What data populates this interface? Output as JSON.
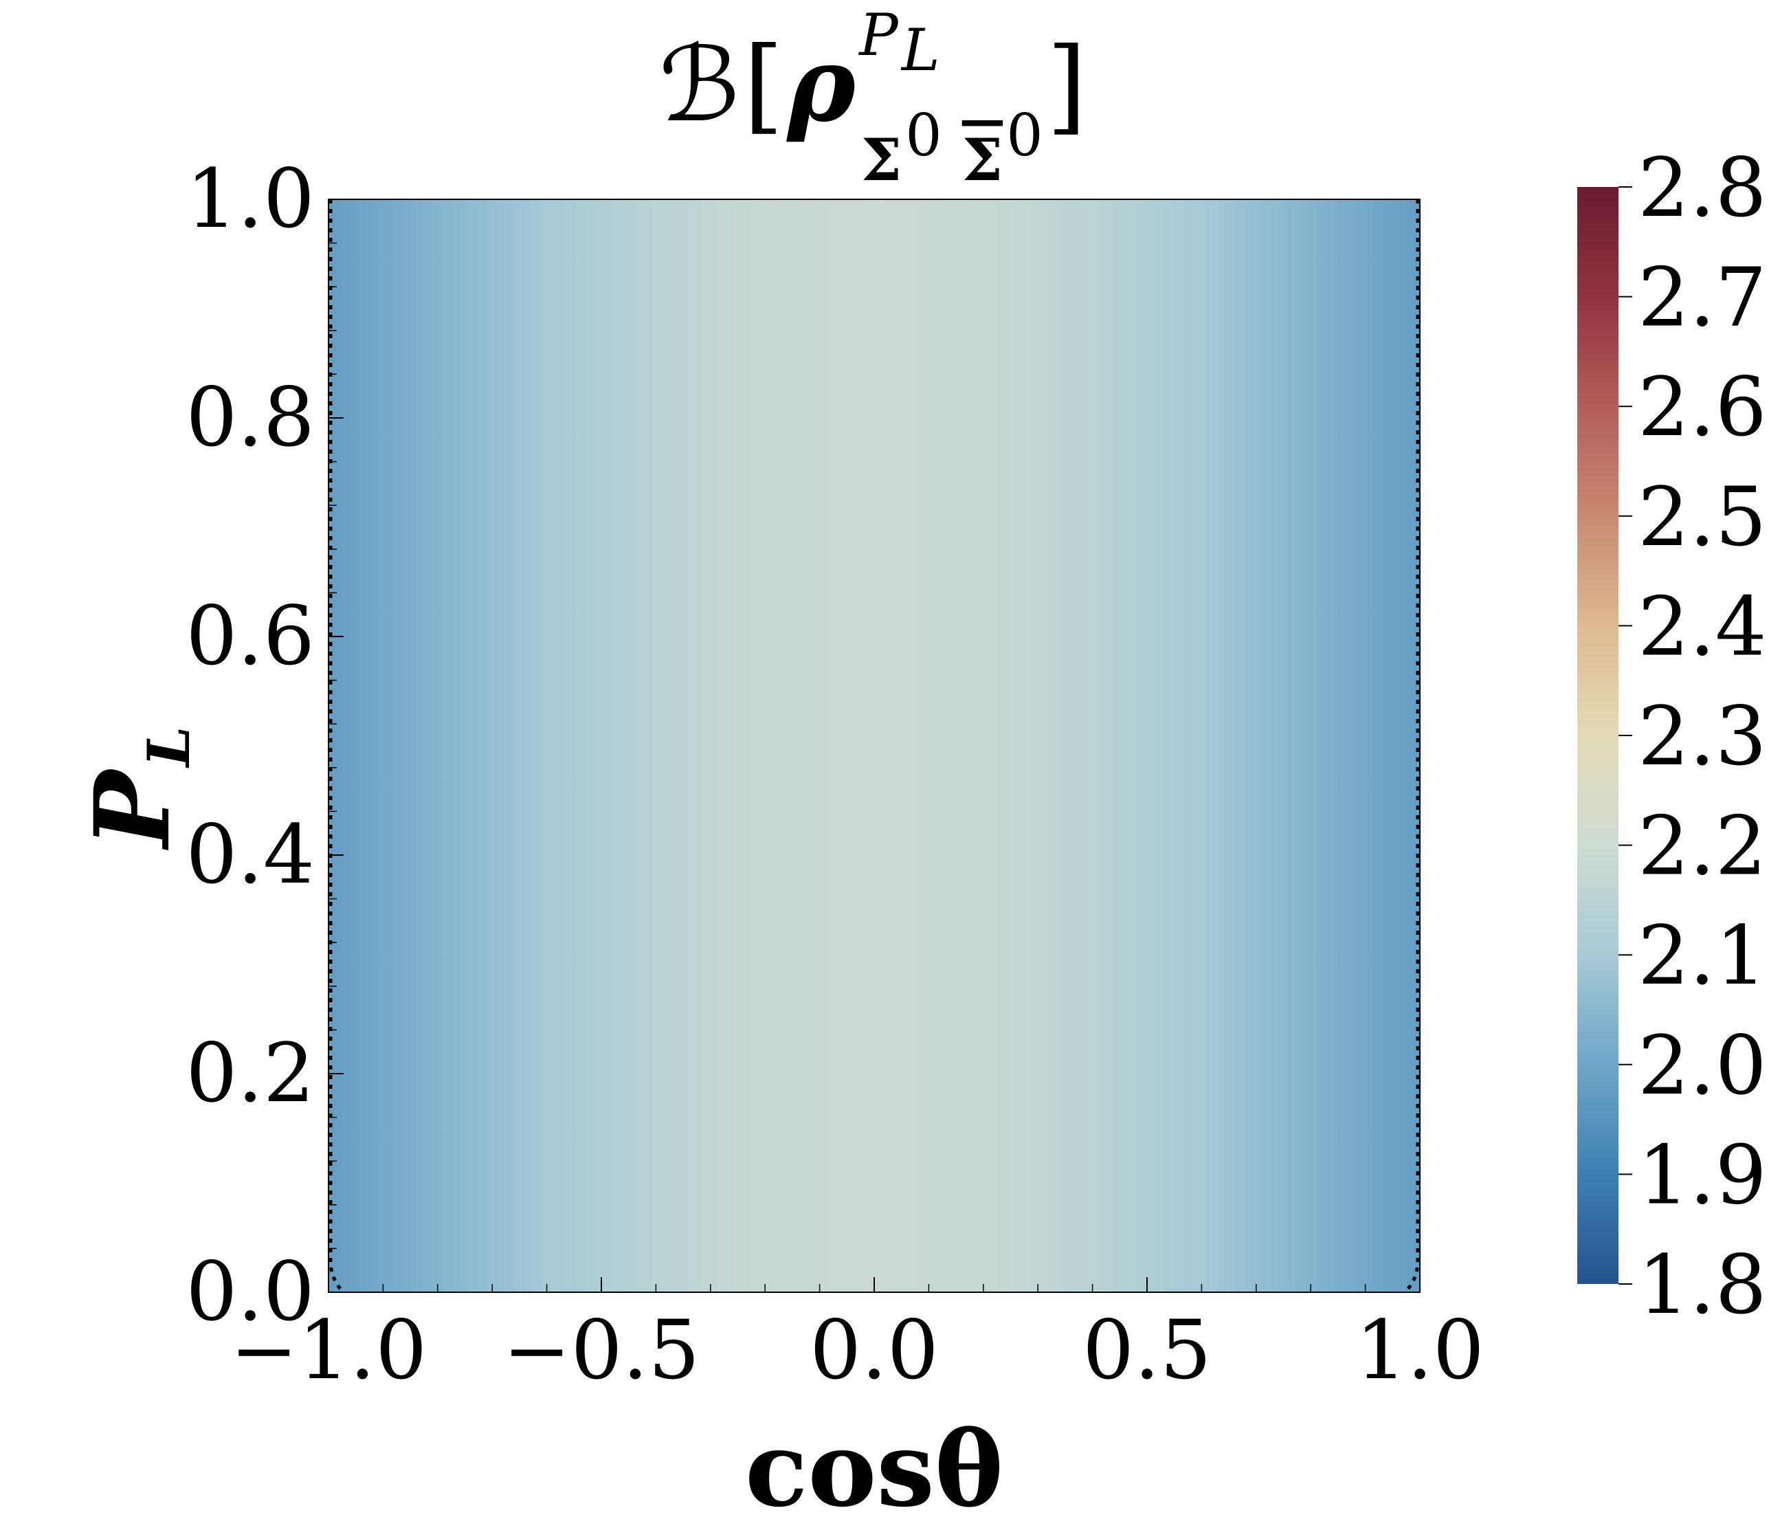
{
  "chart_data": {
    "type": "heatmap",
    "title": {
      "script_b": "ℬ",
      "open_bracket": "[",
      "rho": "ρ",
      "superscript": "P",
      "superscript_sub": "L",
      "sub_sigma": "Σ",
      "sub_zero": "0",
      "sub_sigmabar": "Σ",
      "sub_zero_bar": "0",
      "close_bracket": "]"
    },
    "xlabel": "cosθ",
    "ylabel": {
      "main": "P",
      "sub": "L"
    },
    "xlim": [
      -1.0,
      1.0
    ],
    "ylim": [
      0.0,
      1.0
    ],
    "x_ticks": [
      "−1.0",
      "−0.5",
      "0.0",
      "0.5",
      "1.0"
    ],
    "x_tick_values": [
      -1.0,
      -0.5,
      0.0,
      0.5,
      1.0
    ],
    "y_ticks": [
      "0.0",
      "0.2",
      "0.4",
      "0.6",
      "0.8",
      "1.0"
    ],
    "y_tick_values": [
      0.0,
      0.2,
      0.4,
      0.6,
      0.8,
      1.0
    ],
    "colorbar": {
      "vmin": 1.8,
      "vmax": 2.8,
      "ticks": [
        "1.8",
        "1.9",
        "2.0",
        "2.1",
        "2.2",
        "2.3",
        "2.4",
        "2.5",
        "2.6",
        "2.7",
        "2.8"
      ],
      "tick_values": [
        1.8,
        1.9,
        2.0,
        2.1,
        2.2,
        2.3,
        2.4,
        2.5,
        2.6,
        2.7,
        2.8
      ],
      "colormap": "RdYlBu_r",
      "colormap_stops": [
        {
          "v": 0.0,
          "color": "#25548f"
        },
        {
          "v": 0.1,
          "color": "#3f7fb2"
        },
        {
          "v": 0.2,
          "color": "#6ea6c8"
        },
        {
          "v": 0.3,
          "color": "#a6cad6"
        },
        {
          "v": 0.4,
          "color": "#cfdcd2"
        },
        {
          "v": 0.5,
          "color": "#e4dbb6"
        },
        {
          "v": 0.6,
          "color": "#deb990"
        },
        {
          "v": 0.7,
          "color": "#c88a72"
        },
        {
          "v": 0.8,
          "color": "#b25f58"
        },
        {
          "v": 0.9,
          "color": "#8f3440"
        },
        {
          "v": 1.0,
          "color": "#6a1b2e"
        }
      ]
    },
    "field": {
      "description_values": "B as function of cos(theta), nearly independent of P_L",
      "x": [
        -1.0,
        -0.8,
        -0.6,
        -0.4,
        -0.2,
        0.0,
        0.2,
        0.4,
        0.6,
        0.8,
        1.0
      ],
      "b_values": [
        1.98,
        2.04,
        2.1,
        2.15,
        2.18,
        2.19,
        2.18,
        2.15,
        2.1,
        2.04,
        1.98
      ]
    },
    "contour": {
      "level": 2.0,
      "style": "dotted"
    },
    "grid": false
  }
}
